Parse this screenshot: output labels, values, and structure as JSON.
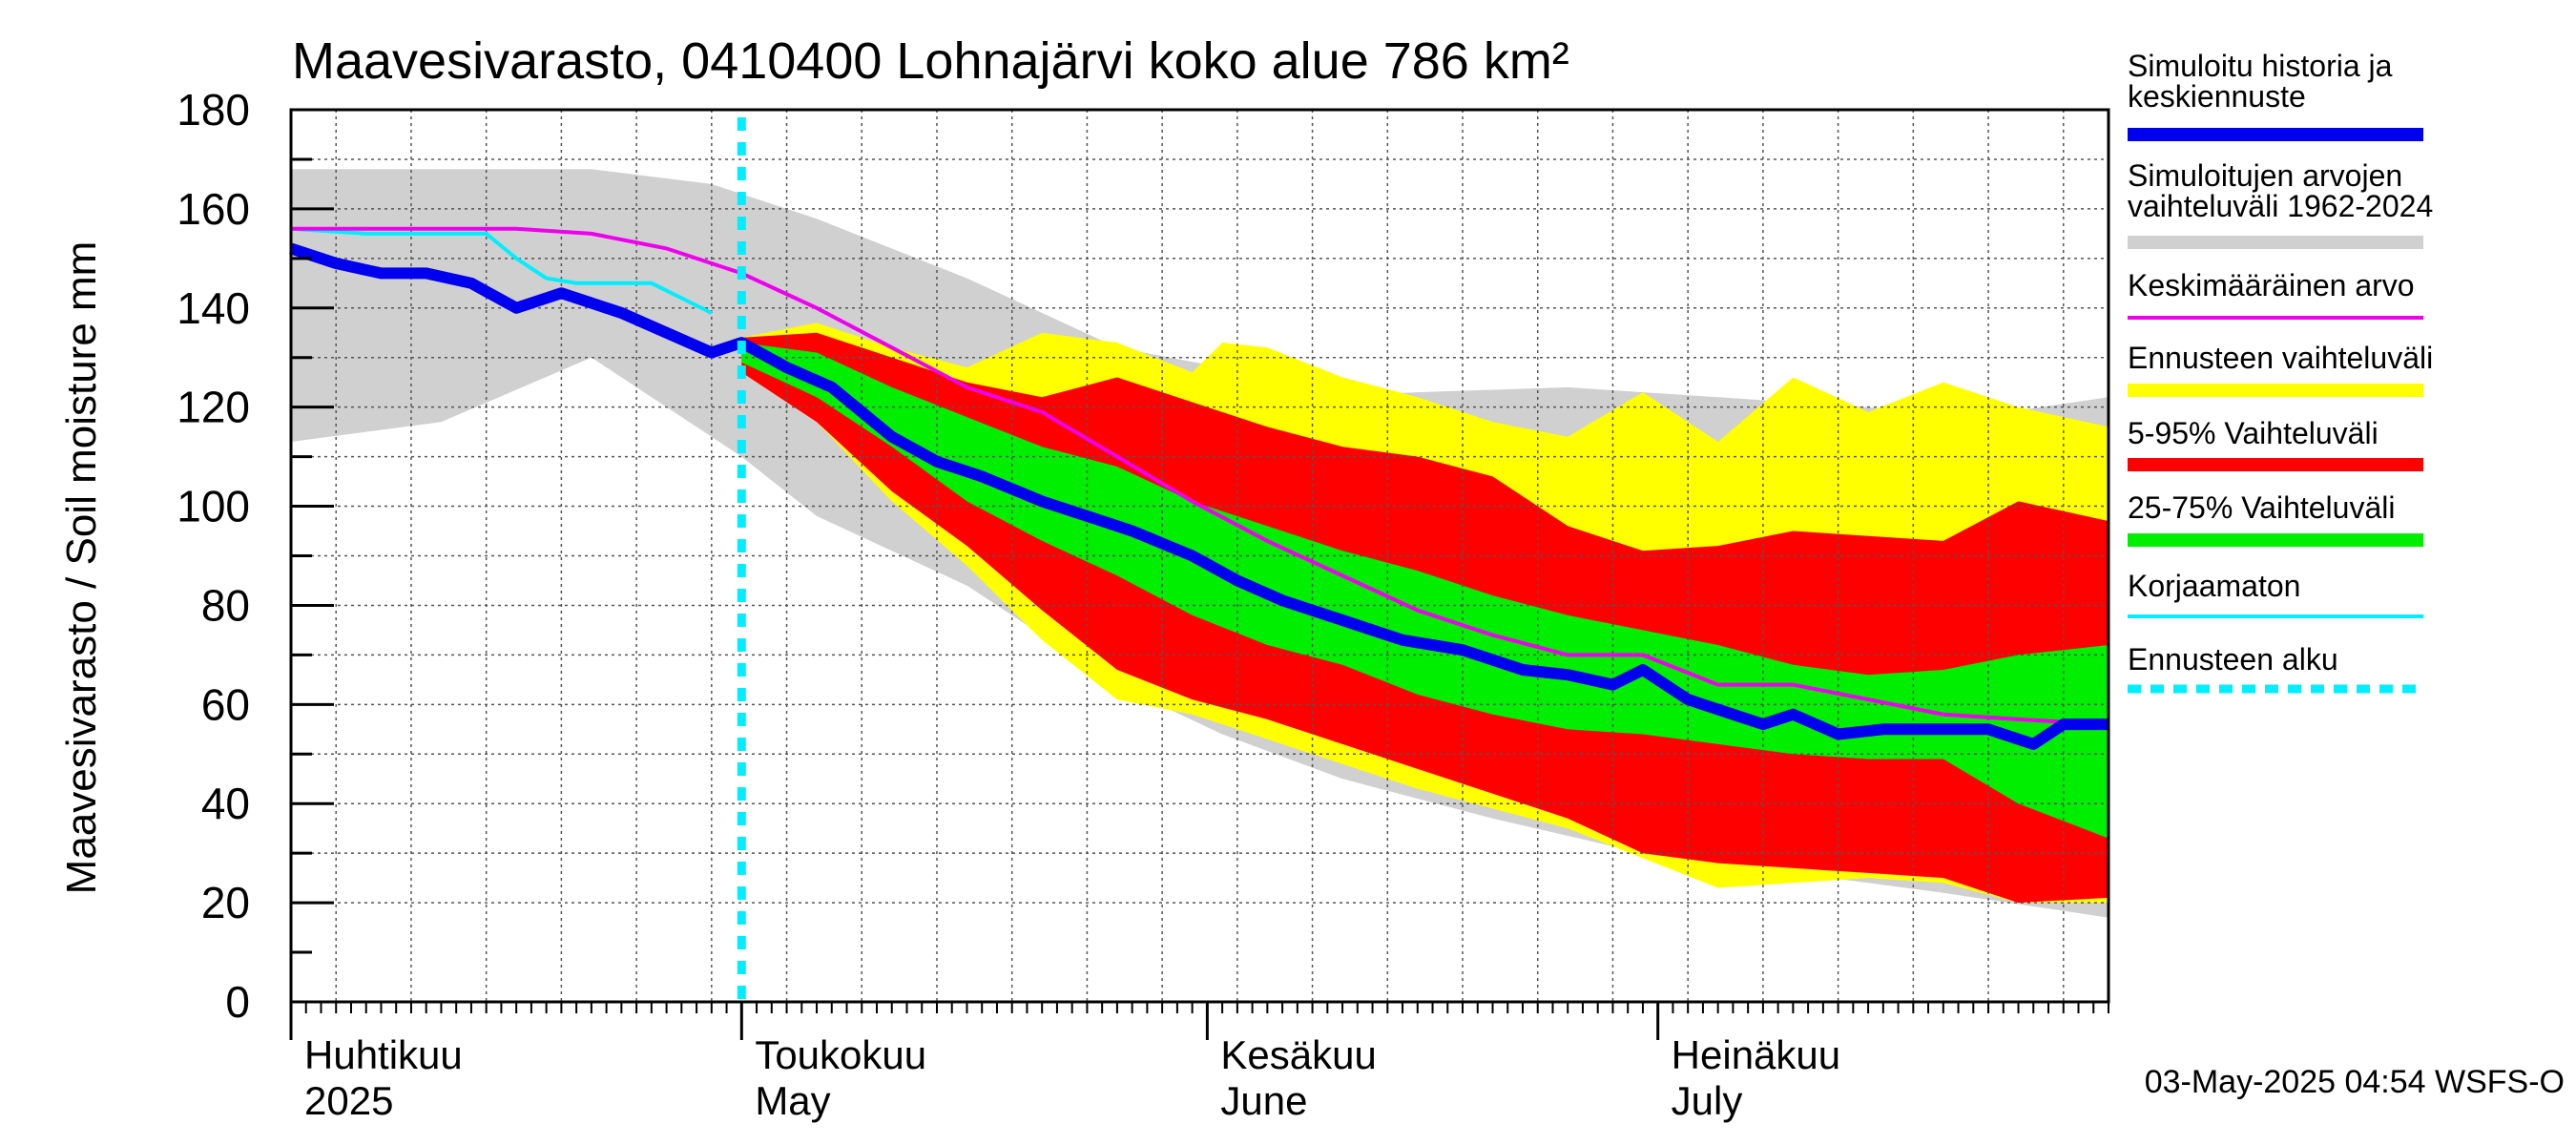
{
  "chart_data": {
    "type": "area",
    "title": "Maavesivarasto, 0410400 Lohnajärvi koko alue 786 km²",
    "ylabel": "Maavesivarasto / Soil moisture   mm",
    "xlabel": "",
    "ylim": [
      0,
      180
    ],
    "yticks": [
      "0",
      "20",
      "40",
      "60",
      "80",
      "100",
      "120",
      "140",
      "160",
      "180"
    ],
    "x_range_days": [
      0,
      121
    ],
    "forecast_start_day": 30,
    "month_labels": [
      {
        "fi": "Huhtikuu",
        "en": "2025",
        "day": 0
      },
      {
        "fi": "Toukokuu",
        "en": "May",
        "day": 30
      },
      {
        "fi": "Kesäkuu",
        "en": "June",
        "day": 61
      },
      {
        "fi": "Heinäkuu",
        "en": "July",
        "day": 91
      }
    ],
    "timestamp": "03-May-2025 04:54 WSFS-O",
    "colors": {
      "history": "#0000ee",
      "range_hist": "#d0d0d0",
      "mean": "#ee00ee",
      "forecast_range": "#ffff00",
      "p5_95": "#ff0000",
      "p25_75": "#00ee00",
      "uncorrected": "#00eeff",
      "forecast_start": "#00eeff"
    },
    "legend": [
      {
        "label": "Simuloitu historia ja keskiennuste",
        "lines": [
          "Simuloitu historia ja",
          "keskiennuste"
        ],
        "color": "#0000ee",
        "style": "thick"
      },
      {
        "label": "Simuloitujen arvojen vaihteluväli 1962-2024",
        "lines": [
          "Simuloitujen arvojen",
          "vaihteluväli 1962-2024"
        ],
        "color": "#d0d0d0",
        "style": "band"
      },
      {
        "label": "Keskimääräinen arvo",
        "lines": [
          "Keskimääräinen arvo"
        ],
        "color": "#ee00ee",
        "style": "thin"
      },
      {
        "label": "Ennusteen vaihteluväli",
        "lines": [
          "Ennusteen vaihteluväli"
        ],
        "color": "#ffff00",
        "style": "band"
      },
      {
        "label": "5-95% Vaihteluväli",
        "lines": [
          "5-95% Vaihteluväli"
        ],
        "color": "#ff0000",
        "style": "band"
      },
      {
        "label": "25-75% Vaihteluväli",
        "lines": [
          "25-75% Vaihteluväli"
        ],
        "color": "#00ee00",
        "style": "band"
      },
      {
        "label": "Korjaamaton",
        "lines": [
          "Korjaamaton"
        ],
        "color": "#00eeff",
        "style": "thin"
      },
      {
        "label": "Ennusteen alku",
        "lines": [
          "Ennusteen alku"
        ],
        "color": "#00eeff",
        "style": "dashed"
      }
    ],
    "series": [
      {
        "name": "hist_range_upper",
        "x": [
          0,
          10,
          20,
          28,
          35,
          45,
          55,
          62,
          68,
          75,
          85,
          95,
          105,
          112,
          121
        ],
        "values": [
          168,
          168,
          168,
          165,
          158,
          146,
          132,
          128,
          122,
          123,
          124,
          122,
          120,
          118,
          122
        ]
      },
      {
        "name": "hist_range_lower",
        "x": [
          0,
          10,
          20,
          30,
          35,
          45,
          55,
          62,
          70,
          80,
          90,
          100,
          110,
          121
        ],
        "values": [
          113,
          117,
          130,
          110,
          98,
          84,
          64,
          54,
          45,
          37,
          30,
          26,
          22,
          17
        ]
      },
      {
        "name": "forecast_upper",
        "x": [
          30,
          35,
          40,
          45,
          50,
          55,
          60,
          62,
          65,
          70,
          75,
          80,
          85,
          90,
          95,
          100,
          105,
          110,
          115,
          121
        ],
        "values": [
          134,
          137,
          132,
          128,
          135,
          133,
          127,
          133,
          132,
          126,
          122,
          117,
          114,
          123,
          113,
          126,
          119,
          125,
          120,
          116
        ]
      },
      {
        "name": "p95",
        "x": [
          30,
          35,
          40,
          45,
          50,
          55,
          60,
          65,
          70,
          75,
          80,
          85,
          90,
          95,
          100,
          105,
          110,
          115,
          121
        ],
        "values": [
          134,
          135,
          130,
          125,
          122,
          126,
          121,
          116,
          112,
          110,
          106,
          96,
          91,
          92,
          95,
          94,
          93,
          101,
          97
        ]
      },
      {
        "name": "p75",
        "x": [
          30,
          35,
          40,
          45,
          50,
          55,
          60,
          65,
          70,
          75,
          80,
          85,
          90,
          95,
          100,
          105,
          110,
          115,
          121
        ],
        "values": [
          133,
          131,
          124,
          118,
          112,
          108,
          101,
          96,
          91,
          87,
          82,
          78,
          75,
          72,
          68,
          66,
          67,
          70,
          72
        ]
      },
      {
        "name": "p25",
        "x": [
          30,
          35,
          40,
          45,
          50,
          55,
          60,
          65,
          70,
          75,
          80,
          85,
          90,
          95,
          100,
          105,
          110,
          115,
          121
        ],
        "values": [
          129,
          122,
          112,
          101,
          93,
          86,
          78,
          72,
          68,
          62,
          58,
          55,
          54,
          52,
          50,
          49,
          49,
          40,
          33
        ]
      },
      {
        "name": "p5",
        "x": [
          30,
          35,
          40,
          45,
          50,
          55,
          60,
          65,
          70,
          75,
          80,
          85,
          90,
          95,
          100,
          105,
          110,
          115,
          121
        ],
        "values": [
          127,
          117,
          103,
          92,
          79,
          67,
          61,
          57,
          52,
          47,
          42,
          37,
          30,
          28,
          27,
          26,
          25,
          20,
          21
        ]
      },
      {
        "name": "forecast_lower",
        "x": [
          30,
          35,
          40,
          45,
          50,
          55,
          60,
          65,
          70,
          75,
          80,
          85,
          90,
          95,
          100,
          105,
          110,
          115,
          121
        ],
        "values": [
          127,
          117,
          101,
          88,
          73,
          61,
          58,
          53,
          48,
          43,
          39,
          35,
          29,
          23,
          24,
          25,
          24,
          20,
          20
        ]
      },
      {
        "name": "history_median",
        "x": [
          0,
          3,
          6,
          9,
          12,
          15,
          18,
          20,
          22,
          25,
          28,
          30,
          33,
          36,
          40,
          43,
          46,
          50,
          53,
          56,
          60,
          63,
          66,
          70,
          74,
          78,
          82,
          85,
          88,
          90,
          93,
          96,
          98,
          100,
          103,
          106,
          110,
          113,
          116,
          118,
          121
        ],
        "values": [
          152,
          149,
          147,
          147,
          145,
          140,
          143,
          141,
          139,
          135,
          131,
          133,
          128,
          124,
          114,
          109,
          106,
          101,
          98,
          95,
          90,
          85,
          81,
          77,
          73,
          71,
          67,
          66,
          64,
          67,
          61,
          58,
          56,
          58,
          54,
          55,
          55,
          55,
          52,
          56,
          56
        ]
      },
      {
        "name": "mean",
        "x": [
          0,
          5,
          10,
          15,
          20,
          25,
          30,
          35,
          40,
          45,
          50,
          55,
          60,
          65,
          70,
          75,
          80,
          85,
          90,
          95,
          100,
          105,
          110,
          115,
          121
        ],
        "values": [
          156,
          156,
          156,
          156,
          155,
          152,
          147,
          140,
          132,
          124,
          119,
          110,
          101,
          93,
          86,
          79,
          74,
          70,
          70,
          64,
          64,
          61,
          58,
          57,
          56
        ]
      },
      {
        "name": "uncorrected",
        "x": [
          0,
          5,
          10,
          13,
          15,
          17,
          19,
          21,
          24,
          28
        ],
        "values": [
          156,
          155,
          155,
          155,
          150,
          146,
          145,
          145,
          145,
          139
        ]
      }
    ]
  }
}
